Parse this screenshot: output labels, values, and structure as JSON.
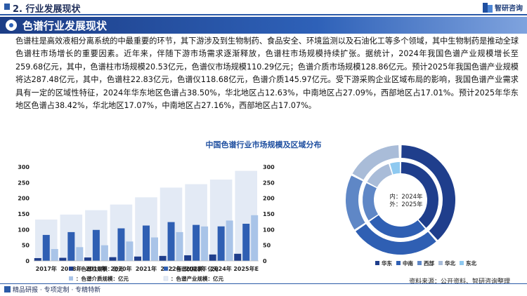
{
  "header": {
    "section_title": "2. 行业发展现状",
    "brand": "智研咨询"
  },
  "banner": {
    "title": "色谱行业发展现状"
  },
  "body": {
    "paragraph": "色谱柱是高效液相分离系统的中最重要的环节，其下游涉及到生物制药、食品安全、环境监测以及石油化工等多个领域，其中生物制药是推动全球色谱柱市场增长的重要因素。近年来，伴随下游市场需求逐渐释放，色谱柱市场规模持续扩张。据统计，2024年我国色谱产业规模增长至259.68亿元，其中，色谱柱市场规模20.53亿元，色谱仪市场规模110.29亿元；色谱介质市场规模128.86亿元。预计2025年我国色谱产业规模将达287.48亿元，其中，色谱柱22.83亿元，色谱仪118.68亿元，色谱介质145.97亿元。受下游采购企业区域布局的影响，我国色谱产业需求具有一定的区域性特征，2024年华东地区色谱占38.50%，华北地区占12.63%，中南地区占27.09%，西部地区占17.01%。预计2025年华东地区色谱占38.42%，华北地区17.07%，中南地区占27.16%，西部地区占17.07%。"
  },
  "chart_title": "中国色谱行业市场规模及区域分布",
  "colors": {
    "column": "#1f3e8c",
    "instrument": "#2f5fb3",
    "media": "#a9c4e8",
    "industry": "#e3eaf5",
    "donut": [
      "#1f3e8c",
      "#2f5fb3",
      "#5f87c6",
      "#a9bcd8",
      "#8ec9f0"
    ]
  },
  "chart_data": [
    {
      "type": "bar",
      "categories": [
        "2017年",
        "2018年",
        "2019年",
        "2020年",
        "2021年",
        "2022年",
        "2023年",
        "2024年",
        "2025年E"
      ],
      "ylim": [
        0,
        300
      ],
      "left_ticks": [
        "0",
        "50",
        "100",
        "150",
        "200",
        "250",
        "300"
      ],
      "right_ticks": [
        "0",
        "50",
        "100",
        "150",
        "200",
        "250",
        "300"
      ],
      "series": [
        {
          "name": "色谱柱规模：亿元",
          "axis": "left",
          "values": [
            9,
            10,
            11,
            12,
            14,
            16,
            18,
            20.53,
            22.83
          ]
        },
        {
          "name": "色谱仪规模：亿元",
          "axis": "left",
          "values": [
            83,
            92,
            99,
            104,
            113,
            124,
            115,
            110.29,
            118.68
          ]
        },
        {
          "name": "色谱介质规模：亿元",
          "axis": "left",
          "values": [
            38,
            44,
            50,
            62,
            75,
            92,
            110,
            128.86,
            145.97
          ]
        },
        {
          "name": "色谱产业规模：亿元",
          "axis": "right",
          "values": [
            132,
            148,
            162,
            180,
            203,
            234,
            245,
            259.68,
            287.48
          ]
        }
      ]
    },
    {
      "type": "pie",
      "variant": "double-donut",
      "center_label_lines": [
        "内：2024年",
        "外：2025年"
      ],
      "categories": [
        "华东",
        "中南",
        "西部",
        "华北",
        "东北"
      ],
      "inner_2024": [
        38.5,
        27.09,
        17.01,
        12.63,
        4.77
      ],
      "outer_2025": [
        38.42,
        27.16,
        17.07,
        17.07,
        0.28
      ]
    }
  ],
  "footer": {
    "left_text": "精品研报 · 专项定制 · 专精特新",
    "source": "资料来源：公开资料、智研咨询整理"
  }
}
